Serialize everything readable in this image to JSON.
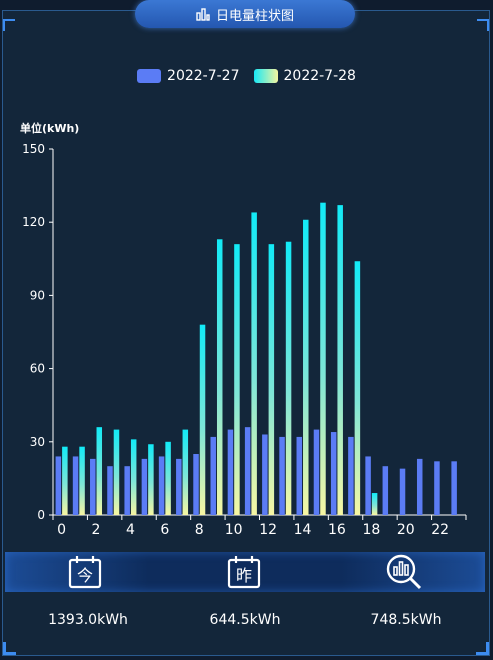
{
  "header": {
    "title": "日电量柱状图",
    "icon": "bar-chart-icon"
  },
  "legend": [
    {
      "label": "2022-7-27",
      "color": "#5b7cf5"
    },
    {
      "label": "2022-7-28",
      "color": "#18e8f5"
    }
  ],
  "chart_data": {
    "type": "bar",
    "ylabel": "单位(kWh)",
    "ylim": [
      0,
      150
    ],
    "yticks": [
      0,
      30,
      60,
      90,
      120,
      150
    ],
    "xticks": [
      0,
      2,
      4,
      6,
      8,
      10,
      12,
      14,
      16,
      18,
      20,
      22
    ],
    "categories": [
      0,
      1,
      2,
      3,
      4,
      5,
      6,
      7,
      8,
      9,
      10,
      11,
      12,
      13,
      14,
      15,
      16,
      17,
      18,
      19,
      20,
      21,
      22,
      23
    ],
    "series": [
      {
        "name": "2022-7-27",
        "values": [
          24,
          24,
          23,
          20,
          20,
          23,
          24,
          23,
          25,
          32,
          35,
          36,
          33,
          32,
          32,
          35,
          34,
          32,
          24,
          20,
          19,
          23,
          22,
          22
        ]
      },
      {
        "name": "2022-7-28",
        "values": [
          28,
          28,
          36,
          35,
          31,
          29,
          30,
          35,
          78,
          113,
          111,
          124,
          111,
          112,
          121,
          128,
          127,
          104,
          9,
          null,
          null,
          null,
          null,
          null
        ]
      }
    ]
  },
  "stats": [
    {
      "icon": "calendar-today-icon",
      "glyph": "今",
      "value": "1393.0kWh"
    },
    {
      "icon": "calendar-yesterday-icon",
      "glyph": "昨",
      "value": "644.5kWh"
    },
    {
      "icon": "analytics-icon",
      "glyph": "",
      "value": "748.5kWh"
    }
  ]
}
